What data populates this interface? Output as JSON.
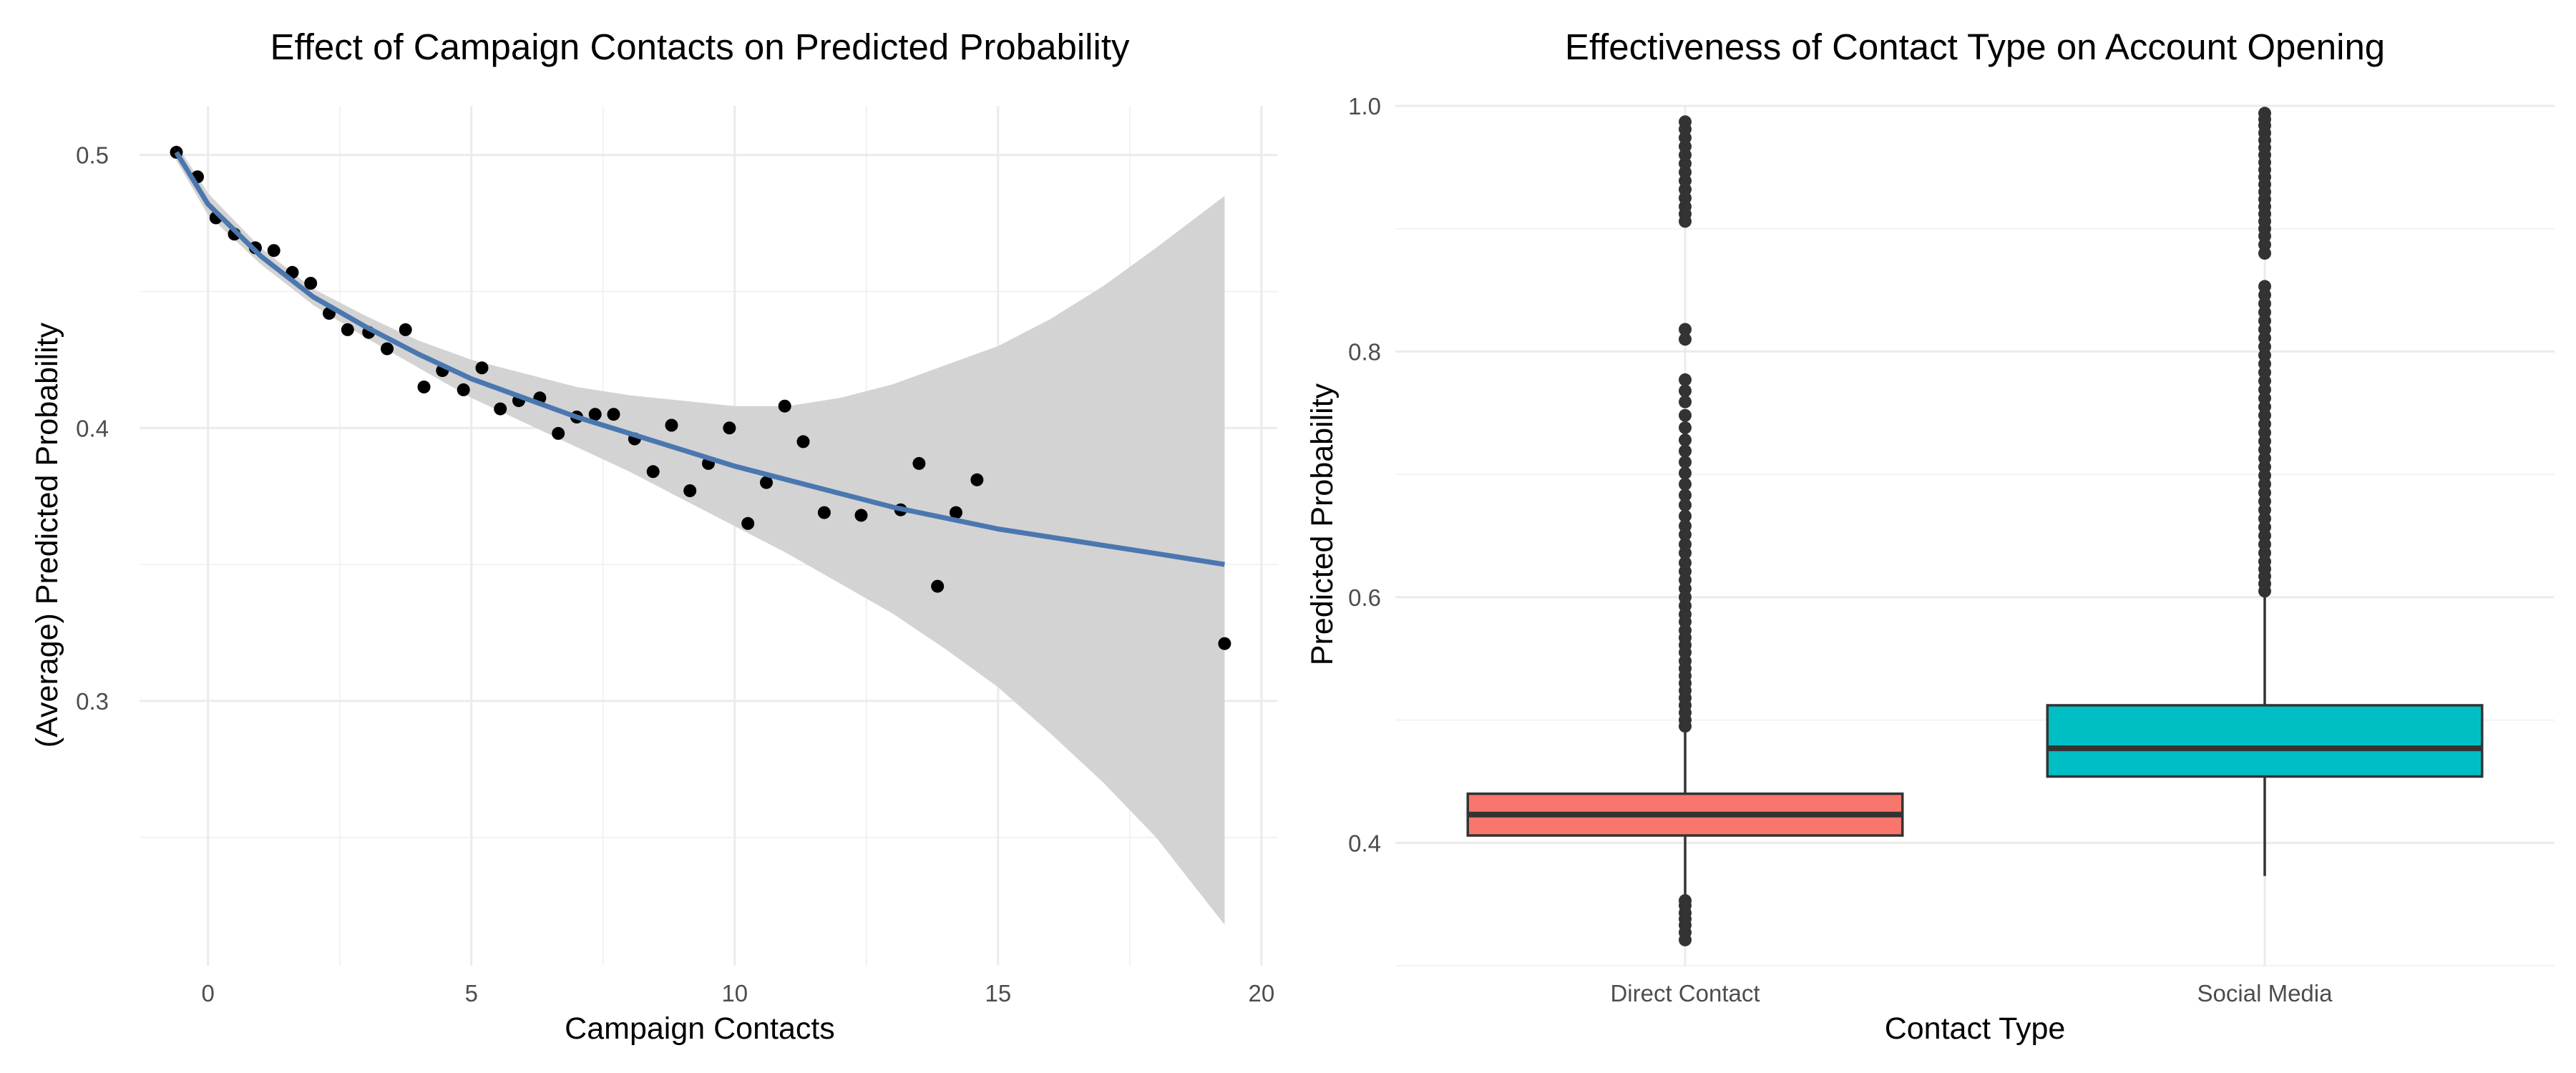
{
  "chart_data": [
    {
      "type": "scatter",
      "title": "Effect of Campaign Contacts on Predicted Probability",
      "xlabel": "Campaign Contacts",
      "ylabel": "(Average) Predicted Probability",
      "xlim": [
        -1.3,
        20.3
      ],
      "ylim": [
        0.203,
        0.518
      ],
      "x_ticks": [
        0,
        5,
        10,
        15,
        20
      ],
      "y_ticks": [
        0.3,
        0.4,
        0.5
      ],
      "x_tick_labels": [
        "0",
        "5",
        "10",
        "15",
        "20"
      ],
      "y_tick_labels": [
        "0.3",
        "0.4",
        "0.5"
      ],
      "grid": true,
      "colors": {
        "points": "#000000",
        "smooth": "#4a77b0",
        "band": "#d3d3d3",
        "grid": "#ebebeb"
      },
      "points": {
        "x": [
          -0.6,
          -0.2,
          0.15,
          0.5,
          0.9,
          1.25,
          1.6,
          1.95,
          2.3,
          2.65,
          3.05,
          3.4,
          3.75,
          4.1,
          4.45,
          4.85,
          5.2,
          5.55,
          5.9,
          6.3,
          6.65,
          7.0,
          7.35,
          7.7,
          8.1,
          8.45,
          8.8,
          9.15,
          9.5,
          9.9,
          10.25,
          10.6,
          10.95,
          11.3,
          11.7,
          12.4,
          13.15,
          13.5,
          13.85,
          14.2,
          14.6,
          19.3
        ],
        "y": [
          0.501,
          0.492,
          0.477,
          0.471,
          0.466,
          0.465,
          0.457,
          0.453,
          0.442,
          0.436,
          0.435,
          0.429,
          0.436,
          0.415,
          0.421,
          0.414,
          0.422,
          0.407,
          0.41,
          0.411,
          0.398,
          0.404,
          0.405,
          0.405,
          0.396,
          0.384,
          0.401,
          0.377,
          0.387,
          0.4,
          0.365,
          0.38,
          0.408,
          0.395,
          0.369,
          0.368,
          0.37,
          0.387,
          0.342,
          0.369,
          0.381,
          0.321
        ]
      },
      "smooth": {
        "x": [
          -0.6,
          0,
          1,
          2,
          3,
          4,
          5,
          6,
          7,
          8,
          9,
          10,
          11,
          12,
          13,
          14,
          15,
          16,
          17,
          18,
          19.3
        ],
        "y": [
          0.501,
          0.482,
          0.463,
          0.448,
          0.437,
          0.427,
          0.418,
          0.411,
          0.404,
          0.398,
          0.392,
          0.386,
          0.381,
          0.376,
          0.371,
          0.367,
          0.363,
          0.36,
          0.357,
          0.354,
          0.35
        ],
        "lower": [
          0.498,
          0.478,
          0.46,
          0.445,
          0.433,
          0.422,
          0.411,
          0.402,
          0.393,
          0.384,
          0.374,
          0.364,
          0.354,
          0.343,
          0.332,
          0.319,
          0.305,
          0.288,
          0.27,
          0.25,
          0.218
        ],
        "upper": [
          0.504,
          0.486,
          0.466,
          0.451,
          0.441,
          0.432,
          0.425,
          0.42,
          0.415,
          0.412,
          0.41,
          0.408,
          0.408,
          0.411,
          0.416,
          0.423,
          0.43,
          0.44,
          0.452,
          0.466,
          0.485
        ]
      }
    },
    {
      "type": "box",
      "title": "Effectiveness of Contact Type on Account Opening",
      "xlabel": "Contact Type",
      "ylabel": "Predicted Probability",
      "categories": [
        "Direct Contact",
        "Social Media"
      ],
      "ylim": [
        0.3,
        1.0
      ],
      "y_ticks": [
        0.4,
        0.6,
        0.8,
        1.0
      ],
      "y_tick_labels": [
        "0.4",
        "0.6",
        "0.8",
        "1.0"
      ],
      "grid": true,
      "legend": "none",
      "colors": {
        "Direct Contact": "#f8766d",
        "Social Media": "#00bfc4",
        "outline": "#333333",
        "outliers": "#333333"
      },
      "boxes": [
        {
          "category": "Direct Contact",
          "q1": 0.406,
          "median": 0.423,
          "q3": 0.44,
          "whisker_low": 0.355,
          "whisker_high": 0.491,
          "outliers": [
            0.321,
            0.327,
            0.333,
            0.338,
            0.343,
            0.349,
            0.353,
            0.495,
            0.5,
            0.506,
            0.512,
            0.518,
            0.524,
            0.53,
            0.536,
            0.542,
            0.548,
            0.555,
            0.561,
            0.567,
            0.573,
            0.58,
            0.586,
            0.593,
            0.6,
            0.607,
            0.614,
            0.621,
            0.628,
            0.636,
            0.643,
            0.651,
            0.658,
            0.666,
            0.675,
            0.683,
            0.692,
            0.701,
            0.71,
            0.719,
            0.728,
            0.738,
            0.748,
            0.759,
            0.768,
            0.777,
            0.81,
            0.818,
            0.906,
            0.912,
            0.918,
            0.925,
            0.932,
            0.939,
            0.946,
            0.953,
            0.96,
            0.967,
            0.974,
            0.981,
            0.987
          ]
        },
        {
          "category": "Social Media",
          "q1": 0.454,
          "median": 0.477,
          "q3": 0.512,
          "whisker_low": 0.373,
          "whisker_high": 0.6,
          "outliers": [
            0.605,
            0.611,
            0.617,
            0.623,
            0.629,
            0.636,
            0.643,
            0.65,
            0.657,
            0.664,
            0.671,
            0.678,
            0.685,
            0.692,
            0.699,
            0.706,
            0.713,
            0.72,
            0.727,
            0.734,
            0.741,
            0.748,
            0.755,
            0.762,
            0.769,
            0.776,
            0.783,
            0.79,
            0.797,
            0.804,
            0.811,
            0.818,
            0.825,
            0.832,
            0.839,
            0.846,
            0.853,
            0.88,
            0.887,
            0.894,
            0.9,
            0.906,
            0.912,
            0.918,
            0.924,
            0.93,
            0.936,
            0.942,
            0.948,
            0.954,
            0.96,
            0.966,
            0.972,
            0.978,
            0.984,
            0.989,
            0.994
          ]
        }
      ]
    }
  ]
}
